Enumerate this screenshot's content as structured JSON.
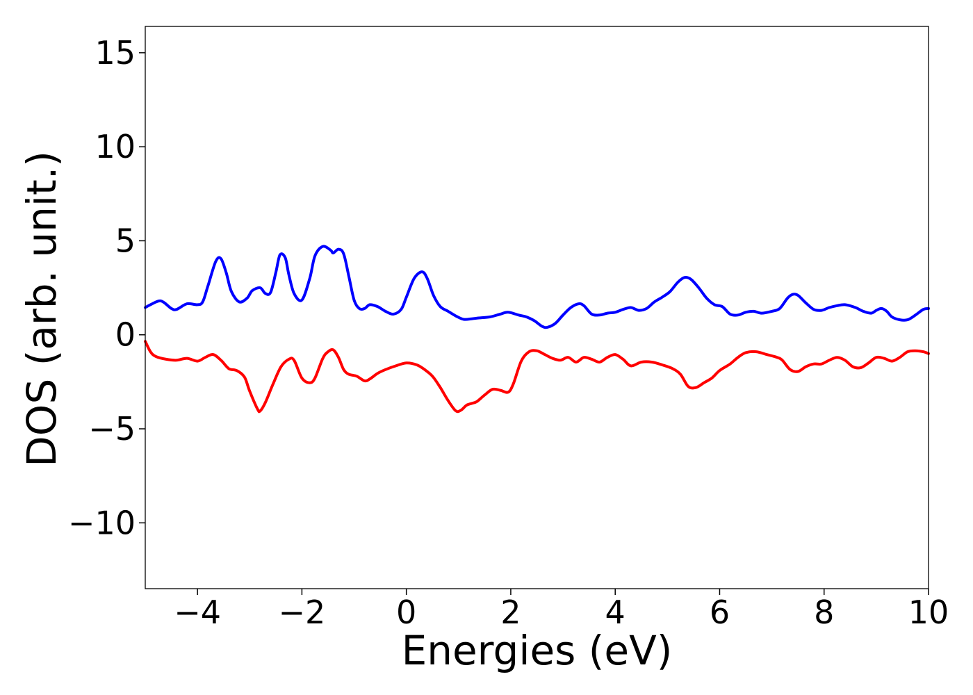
{
  "chart_data": {
    "type": "line",
    "xlabel": "Energies (eV)",
    "ylabel": "DOS (arb. unit.)",
    "xlim": [
      -5,
      10
    ],
    "ylim": [
      -13.5,
      16.4
    ],
    "xticks": [
      -4,
      -2,
      0,
      2,
      4,
      6,
      8,
      10
    ],
    "xtick_labels": [
      "−4",
      "−2",
      "0",
      "2",
      "4",
      "6",
      "8",
      "10"
    ],
    "yticks": [
      -10,
      -5,
      0,
      5,
      10,
      15
    ],
    "ytick_labels": [
      "−10",
      "−5",
      "0",
      "5",
      "10",
      "15"
    ],
    "grid": false,
    "series": [
      {
        "color": "#0000ff",
        "x": [
          -5.0,
          -4.9,
          -4.7,
          -4.5,
          -4.4,
          -4.2,
          -4.0,
          -3.9,
          -3.8,
          -3.65,
          -3.55,
          -3.45,
          -3.35,
          -3.2,
          -3.05,
          -2.95,
          -2.8,
          -2.7,
          -2.6,
          -2.5,
          -2.42,
          -2.32,
          -2.25,
          -2.15,
          -2.0,
          -1.85,
          -1.75,
          -1.6,
          -1.45,
          -1.4,
          -1.3,
          -1.2,
          -1.1,
          -1.0,
          -0.9,
          -0.8,
          -0.7,
          -0.55,
          -0.4,
          -0.25,
          -0.1,
          0.0,
          0.15,
          0.3,
          0.4,
          0.52,
          0.65,
          0.8,
          0.95,
          1.1,
          1.25,
          1.4,
          1.6,
          1.8,
          1.95,
          2.15,
          2.3,
          2.45,
          2.6,
          2.7,
          2.85,
          3.0,
          3.15,
          3.3,
          3.4,
          3.55,
          3.7,
          3.85,
          4.0,
          4.15,
          4.3,
          4.45,
          4.6,
          4.75,
          4.9,
          5.05,
          5.2,
          5.33,
          5.45,
          5.6,
          5.75,
          5.9,
          6.05,
          6.2,
          6.35,
          6.5,
          6.65,
          6.8,
          7.0,
          7.15,
          7.3,
          7.4,
          7.5,
          7.65,
          7.8,
          7.95,
          8.1,
          8.25,
          8.4,
          8.6,
          8.75,
          8.9,
          9.0,
          9.1,
          9.2,
          9.3,
          9.45,
          9.6,
          9.75,
          9.9,
          10.0
        ],
        "y": [
          1.45,
          1.6,
          1.8,
          1.4,
          1.35,
          1.65,
          1.6,
          1.75,
          2.6,
          3.9,
          4.05,
          3.3,
          2.3,
          1.75,
          1.95,
          2.35,
          2.5,
          2.2,
          2.25,
          3.3,
          4.25,
          4.1,
          3.2,
          2.2,
          1.85,
          3.0,
          4.2,
          4.7,
          4.5,
          4.35,
          4.55,
          4.3,
          3.1,
          1.85,
          1.4,
          1.4,
          1.6,
          1.5,
          1.25,
          1.1,
          1.35,
          2.0,
          3.0,
          3.35,
          3.0,
          2.1,
          1.5,
          1.25,
          1.0,
          0.82,
          0.85,
          0.9,
          0.95,
          1.1,
          1.2,
          1.05,
          0.95,
          0.75,
          0.45,
          0.4,
          0.6,
          1.05,
          1.45,
          1.65,
          1.55,
          1.1,
          1.05,
          1.15,
          1.2,
          1.35,
          1.45,
          1.3,
          1.4,
          1.75,
          2.0,
          2.3,
          2.8,
          3.05,
          2.95,
          2.5,
          1.95,
          1.6,
          1.5,
          1.1,
          1.05,
          1.2,
          1.25,
          1.15,
          1.25,
          1.4,
          1.95,
          2.15,
          2.1,
          1.7,
          1.35,
          1.3,
          1.45,
          1.55,
          1.6,
          1.45,
          1.25,
          1.15,
          1.3,
          1.4,
          1.25,
          0.95,
          0.8,
          0.8,
          1.05,
          1.35,
          1.4
        ]
      },
      {
        "color": "#ff0000",
        "x": [
          -5.0,
          -4.9,
          -4.8,
          -4.6,
          -4.4,
          -4.2,
          -4.0,
          -3.85,
          -3.7,
          -3.55,
          -3.4,
          -3.25,
          -3.1,
          -3.0,
          -2.85,
          -2.8,
          -2.7,
          -2.55,
          -2.4,
          -2.25,
          -2.15,
          -2.0,
          -1.85,
          -1.75,
          -1.6,
          -1.5,
          -1.4,
          -1.3,
          -1.2,
          -1.1,
          -0.95,
          -0.8,
          -0.7,
          -0.55,
          -0.4,
          -0.2,
          0.0,
          0.2,
          0.35,
          0.5,
          0.65,
          0.8,
          0.95,
          1.05,
          1.15,
          1.25,
          1.35,
          1.5,
          1.65,
          1.8,
          1.95,
          2.05,
          2.2,
          2.35,
          2.5,
          2.65,
          2.8,
          2.95,
          3.1,
          3.25,
          3.4,
          3.55,
          3.7,
          3.85,
          4.0,
          4.15,
          4.3,
          4.5,
          4.7,
          4.9,
          5.1,
          5.25,
          5.4,
          5.55,
          5.7,
          5.85,
          6.0,
          6.2,
          6.35,
          6.5,
          6.7,
          6.9,
          7.1,
          7.2,
          7.35,
          7.5,
          7.65,
          7.8,
          7.95,
          8.1,
          8.25,
          8.4,
          8.55,
          8.7,
          8.85,
          9.0,
          9.15,
          9.3,
          9.45,
          9.6,
          9.75,
          9.9,
          10.0
        ],
        "y": [
          -0.35,
          -0.9,
          -1.15,
          -1.3,
          -1.35,
          -1.25,
          -1.4,
          -1.2,
          -1.05,
          -1.35,
          -1.8,
          -1.9,
          -2.25,
          -3.0,
          -3.95,
          -4.05,
          -3.6,
          -2.6,
          -1.7,
          -1.3,
          -1.35,
          -2.3,
          -2.55,
          -2.3,
          -1.25,
          -0.9,
          -0.8,
          -1.2,
          -1.85,
          -2.1,
          -2.2,
          -2.45,
          -2.35,
          -2.05,
          -1.85,
          -1.65,
          -1.5,
          -1.6,
          -1.85,
          -2.2,
          -2.8,
          -3.5,
          -4.05,
          -4.0,
          -3.75,
          -3.65,
          -3.55,
          -3.2,
          -2.9,
          -2.95,
          -3.05,
          -2.6,
          -1.4,
          -0.9,
          -0.85,
          -1.05,
          -1.25,
          -1.35,
          -1.2,
          -1.45,
          -1.2,
          -1.3,
          -1.45,
          -1.2,
          -1.05,
          -1.3,
          -1.65,
          -1.45,
          -1.45,
          -1.6,
          -1.8,
          -2.1,
          -2.75,
          -2.8,
          -2.55,
          -2.3,
          -1.9,
          -1.55,
          -1.2,
          -0.95,
          -0.9,
          -1.05,
          -1.2,
          -1.35,
          -1.85,
          -1.95,
          -1.7,
          -1.55,
          -1.55,
          -1.35,
          -1.2,
          -1.35,
          -1.7,
          -1.75,
          -1.5,
          -1.2,
          -1.25,
          -1.4,
          -1.2,
          -0.9,
          -0.85,
          -0.9,
          -1.0
        ]
      }
    ]
  }
}
